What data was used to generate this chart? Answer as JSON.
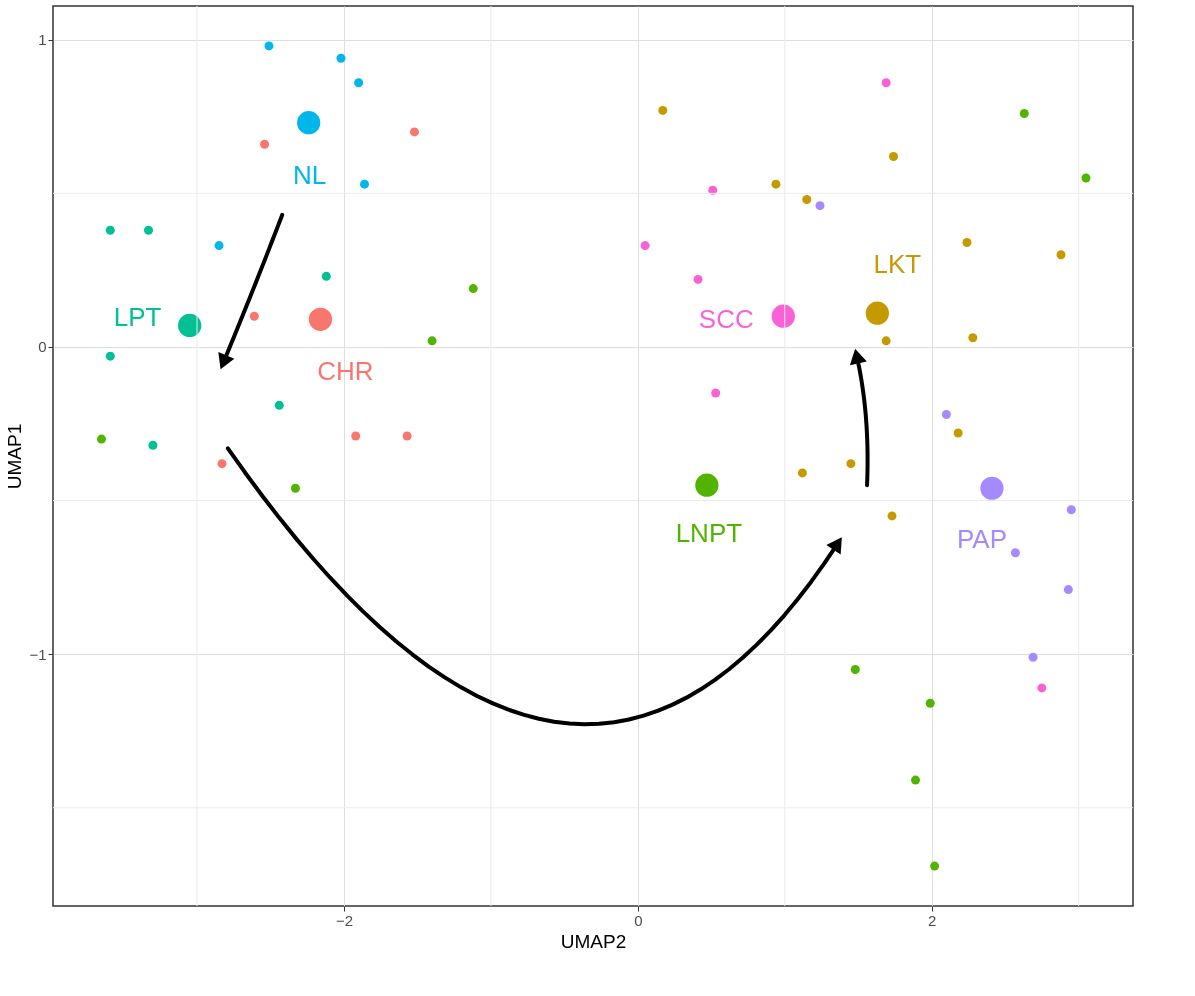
{
  "chart_data": {
    "type": "bubble",
    "xlabel": "UMAP2",
    "ylabel": "UMAP1",
    "xlim": [
      -3.98,
      3.37
    ],
    "ylim": [
      -1.82,
      1.11
    ],
    "xticks": [
      -2,
      0,
      2
    ],
    "yticks": [
      -1,
      0,
      1
    ],
    "grid": true,
    "legend": false,
    "marker": "circle",
    "series": [
      {
        "name": "CHR",
        "color": "#f8766d",
        "x": [
          -2.16,
          -2.54,
          -1.52,
          -2.61,
          -1.92,
          -1.57,
          -2.83
        ],
        "values": [
          0.09,
          0.66,
          0.7,
          0.1,
          -0.29,
          -0.29,
          -0.38
        ],
        "sizes": [
          1,
          0.15,
          0.15,
          0.15,
          0.15,
          0.15,
          0.15
        ]
      },
      {
        "name": "LKT",
        "color": "#c49a00",
        "x": [
          1.63,
          0.17,
          1.74,
          0.94,
          1.15,
          2.24,
          2.88,
          1.69,
          2.28,
          1.45,
          1.12,
          1.73,
          2.18
        ],
        "values": [
          0.11,
          0.77,
          0.62,
          0.53,
          0.48,
          0.34,
          0.3,
          0.02,
          0.03,
          -0.38,
          -0.41,
          -0.55,
          -0.28
        ],
        "sizes": [
          1,
          0.15,
          0.15,
          0.15,
          0.15,
          0.15,
          0.15,
          0.15,
          0.15,
          0.15,
          0.15,
          0.15,
          0.15
        ]
      },
      {
        "name": "LNPT",
        "color": "#53b400",
        "x": [
          0.47,
          -1.12,
          -1.4,
          -3.65,
          -2.33,
          2.63,
          3.05,
          1.48,
          1.99,
          1.89,
          2.02
        ],
        "values": [
          -0.45,
          0.19,
          0.02,
          -0.3,
          -0.46,
          0.76,
          0.55,
          -1.05,
          -1.16,
          -1.41,
          -1.69
        ],
        "sizes": [
          1,
          0.15,
          0.15,
          0.15,
          0.15,
          0.15,
          0.15,
          0.15,
          0.15,
          0.15,
          0.15
        ]
      },
      {
        "name": "LPT",
        "color": "#00c094",
        "x": [
          -3.05,
          -3.59,
          -3.33,
          -2.12,
          -3.59,
          -2.44,
          -3.3
        ],
        "values": [
          0.07,
          0.38,
          0.38,
          0.23,
          -0.03,
          -0.19,
          -0.32
        ],
        "sizes": [
          1,
          0.15,
          0.15,
          0.15,
          0.15,
          0.15,
          0.15
        ]
      },
      {
        "name": "NL",
        "color": "#00b6eb",
        "x": [
          -2.24,
          -2.51,
          -2.02,
          -1.9,
          -1.86,
          -2.85
        ],
        "values": [
          0.73,
          0.98,
          0.94,
          0.86,
          0.53,
          0.33
        ],
        "sizes": [
          1,
          0.15,
          0.15,
          0.15,
          0.15,
          0.15
        ]
      },
      {
        "name": "PAP",
        "color": "#a58aff",
        "x": [
          2.41,
          1.24,
          2.1,
          2.95,
          2.57,
          2.93,
          2.69
        ],
        "values": [
          -0.46,
          0.46,
          -0.22,
          -0.53,
          -0.67,
          -0.79,
          -1.01
        ],
        "sizes": [
          1,
          0.15,
          0.15,
          0.15,
          0.15,
          0.15,
          0.15
        ]
      },
      {
        "name": "SCC",
        "color": "#fb61d7",
        "x": [
          0.99,
          1.69,
          0.51,
          0.05,
          0.41,
          0.53,
          2.75
        ],
        "values": [
          0.1,
          0.86,
          0.51,
          0.33,
          0.22,
          -0.15,
          -1.11
        ],
        "sizes": [
          1,
          0.15,
          0.15,
          0.15,
          0.15,
          0.15,
          0.15
        ]
      }
    ]
  }
}
